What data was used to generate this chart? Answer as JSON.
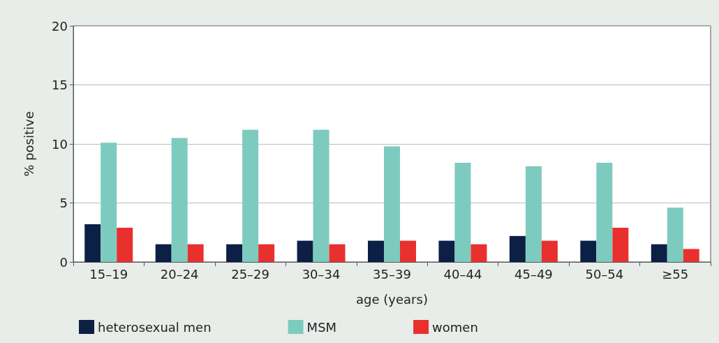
{
  "chart_data": {
    "type": "bar",
    "xlabel": "age (years)",
    "ylabel": "% positive",
    "categories": [
      "15–19",
      "20–24",
      "25–29",
      "30–34",
      "35–39",
      "40–44",
      "45–49",
      "50–54",
      "≥55"
    ],
    "series": [
      {
        "name": "heterosexual men",
        "color": "#0c1f45",
        "values": [
          3.2,
          1.5,
          1.5,
          1.8,
          1.8,
          1.8,
          2.2,
          1.8,
          1.5
        ]
      },
      {
        "name": "MSM",
        "color": "#7dcbbf",
        "values": [
          10.1,
          10.5,
          11.2,
          11.2,
          9.8,
          8.4,
          8.1,
          8.4,
          4.6
        ]
      },
      {
        "name": "women",
        "color": "#e8312f",
        "values": [
          2.9,
          1.5,
          1.5,
          1.5,
          1.8,
          1.5,
          1.8,
          2.9,
          1.1
        ]
      }
    ],
    "ylim": [
      0,
      20
    ],
    "yticks": [
      0,
      5,
      10,
      15,
      20
    ],
    "grid": "y",
    "legend": "bottom left"
  }
}
